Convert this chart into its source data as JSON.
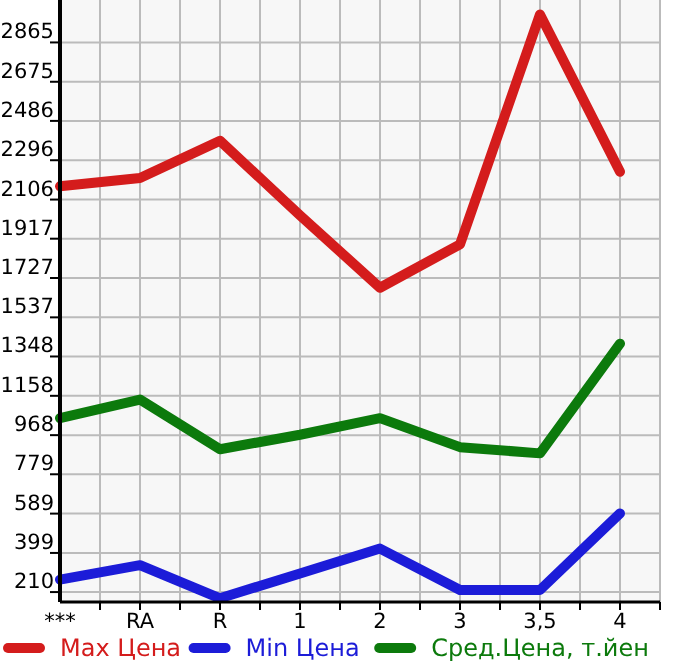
{
  "chart_data": {
    "type": "line",
    "categories": [
      "***",
      "RA",
      "R",
      "1",
      "2",
      "3",
      "3,5",
      "4"
    ],
    "series": [
      {
        "name": "Max Цена",
        "color": "#d41c1c",
        "values": [
          2170,
          2210,
          2390,
          2030,
          1680,
          1890,
          3000,
          2240
        ]
      },
      {
        "name": "Min Цена",
        "color": "#1c1cd8",
        "values": [
          270,
          340,
          180,
          300,
          420,
          220,
          220,
          590
        ]
      },
      {
        "name": "Сред.Цена, т.йен",
        "color": "#0c7a0c",
        "values": [
          1050,
          1140,
          900,
          970,
          1050,
          910,
          880,
          1410
        ]
      }
    ],
    "ylim": [
      162,
      3070
    ],
    "yticks": [
      210,
      399,
      589,
      779,
      968,
      1158,
      1348,
      1537,
      1727,
      1917,
      2106,
      2296,
      2486,
      2675,
      2865
    ],
    "grid": true,
    "legend": "bottom",
    "marker": "none",
    "line_style": "solid"
  }
}
